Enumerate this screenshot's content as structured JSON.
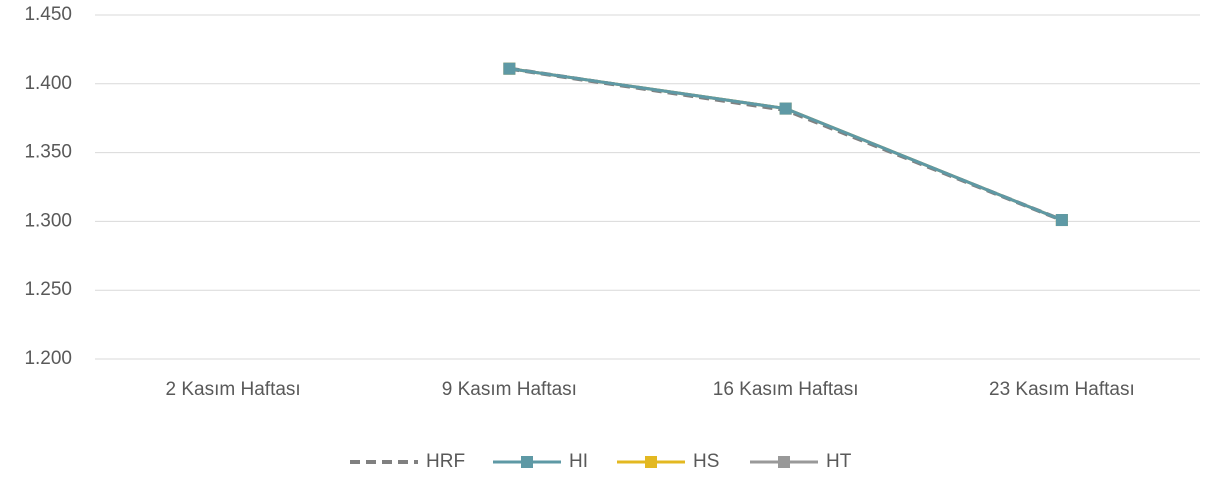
{
  "chart_data": {
    "type": "line",
    "categories": [
      "2 Kasım Haftası",
      "9 Kasım Haftası",
      "16 Kasım Haftası",
      "23 Kasım Haftası"
    ],
    "series": [
      {
        "name": "HRF",
        "color": "#808080",
        "dashed": true,
        "marker": "none",
        "values": [
          null,
          1411,
          1381,
          1301
        ]
      },
      {
        "name": "HI",
        "color": "#5e99a5",
        "dashed": false,
        "marker": "square",
        "values": [
          null,
          1411,
          1382,
          1301
        ]
      },
      {
        "name": "HS",
        "color": "#e3b821",
        "dashed": false,
        "marker": "square",
        "values": [
          null,
          1411,
          1382,
          1301
        ]
      },
      {
        "name": "HT",
        "color": "#999999",
        "dashed": false,
        "marker": "square",
        "values": [
          null,
          1411,
          1382,
          1301
        ]
      }
    ],
    "ylim": [
      1200,
      1450
    ],
    "yticks": [
      {
        "value": 1200,
        "label": "1.200"
      },
      {
        "value": 1250,
        "label": "1.250"
      },
      {
        "value": 1300,
        "label": "1.300"
      },
      {
        "value": 1350,
        "label": "1.350"
      },
      {
        "value": 1400,
        "label": "1.400"
      },
      {
        "value": 1450,
        "label": "1.450"
      }
    ],
    "grid": true,
    "legend": "bottom"
  }
}
